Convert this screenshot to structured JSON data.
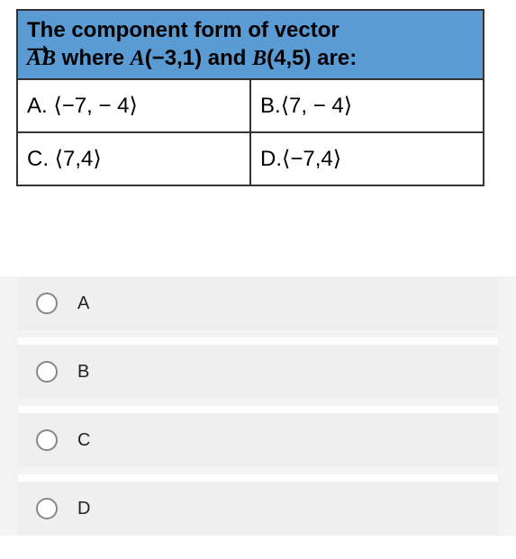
{
  "question": {
    "line1": "The component form of vector",
    "vector_label": "AB",
    "line2_part1": " where ",
    "pointA_label": "A",
    "pointA_coords": "(−3,1)",
    "line2_part2": " and ",
    "pointB_label": "B",
    "pointB_coords": "(4,5)",
    "line2_part3": " are:"
  },
  "answers": {
    "A": {
      "prefix": "A. ",
      "value": "⟨−7, − 4⟩"
    },
    "B": {
      "prefix": "B.",
      "value": "⟨7, − 4⟩"
    },
    "C": {
      "prefix": "C. ",
      "value": "⟨7,4⟩"
    },
    "D": {
      "prefix": "D.",
      "value": "⟨−7,4⟩"
    }
  },
  "options": [
    {
      "label": "A"
    },
    {
      "label": "B"
    },
    {
      "label": "C"
    },
    {
      "label": "D"
    }
  ],
  "colors": {
    "header_bg": "#5a9bd4",
    "border": "#333333",
    "option_bg": "#efefef",
    "radio_border": "#888888"
  }
}
